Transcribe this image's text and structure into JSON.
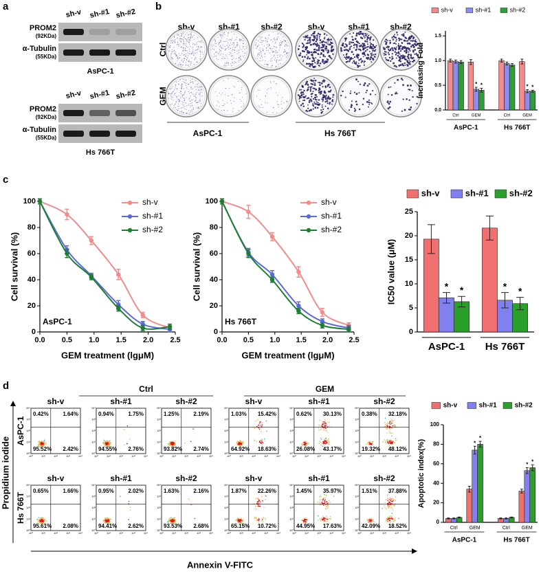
{
  "panel_labels": [
    "a",
    "b",
    "c",
    "d"
  ],
  "blots": [
    {
      "lanes": [
        "sh-v",
        "sh-#1",
        "sh-#2"
      ],
      "rows": [
        {
          "name": "PROM2",
          "size": "(92KDa)"
        },
        {
          "name": "α-Tubulin",
          "size": "(55KDa)"
        }
      ],
      "cell_line": "AsPC-1"
    },
    {
      "lanes": [
        "sh-v",
        "sh-#1",
        "sh-#2"
      ],
      "rows": [
        {
          "name": "PROM2",
          "size": "(92KDa)"
        },
        {
          "name": "α-Tubulin",
          "size": "(55KDa)"
        }
      ],
      "cell_line": "Hs 766T"
    }
  ],
  "colony": {
    "columns": [
      "sh-v",
      "sh-#1",
      "sh-#2",
      "sh-v",
      "sh-#1",
      "sh-#2"
    ],
    "rows": [
      "Ctrl",
      "GEM"
    ],
    "groups": [
      "AsPC-1",
      "Hs 766T"
    ]
  },
  "flow": {
    "groups": [
      "Ctrl",
      "GEM"
    ],
    "columns": [
      "sh-v",
      "sh-#1",
      "sh-#2",
      "sh-v",
      "sh-#1",
      "sh-#2"
    ],
    "rows": [
      {
        "label": "AsPC-1",
        "plots": [
          [
            "0.42%",
            "1.64%",
            "95.52%",
            "2.42%"
          ],
          [
            "0.94%",
            "1.75%",
            "94.55%",
            "2.76%"
          ],
          [
            "1.25%",
            "2.19%",
            "93.82%",
            "2.74%"
          ],
          [
            "1.03%",
            "15.42%",
            "64.92%",
            "18.63%"
          ],
          [
            "0.62%",
            "30.13%",
            "26.08%",
            "43.17%"
          ],
          [
            "0.38%",
            "32.18%",
            "19.32%",
            "48.12%"
          ]
        ]
      },
      {
        "label": "Hs 766T",
        "plots": [
          [
            "0.65%",
            "1.66%",
            "95.61%",
            "2.08%"
          ],
          [
            "0.95%",
            "2.02%",
            "94.41%",
            "2.62%"
          ],
          [
            "1.63%",
            "2.16%",
            "93.53%",
            "2.68%"
          ],
          [
            "1.87%",
            "22.26%",
            "65.15%",
            "10.72%"
          ],
          [
            "1.45%",
            "35.97%",
            "44.95%",
            "17.63%"
          ],
          [
            "1.51%",
            "37.88%",
            "42.09%",
            "18.52%"
          ]
        ]
      }
    ],
    "ticks": [
      "10⁰",
      "10¹",
      "10²",
      "10³",
      "10⁴"
    ],
    "y_label": "Propidium iodide",
    "x_label": "Annexin V-FITC"
  },
  "chart_data": [
    {
      "type": "bar",
      "y_label": "Increasing Fold",
      "categories": [
        "Ctrl",
        "GEM",
        "Ctrl",
        "GEM"
      ],
      "groups": [
        "AsPC-1",
        "Hs 766T"
      ],
      "ylim": [
        0,
        1.6
      ],
      "yticks": [
        {
          "value": 0,
          "label": "0.0"
        },
        0.5,
        {
          "value": 1,
          "label": "1.0"
        },
        1.5
      ],
      "series": [
        {
          "name": "sh-v",
          "color": "#f08c8c",
          "values": [
            1.0,
            0.97,
            1.0,
            0.98
          ],
          "errors": [
            0.03,
            0.05,
            0.03,
            0.05
          ]
        },
        {
          "name": "sh-#1",
          "color": "#8c8cec",
          "values": [
            0.98,
            0.42,
            0.94,
            0.38
          ],
          "errors": [
            0.03,
            0.04,
            0.03,
            0.03
          ],
          "significance": [
            null,
            "*",
            null,
            "*"
          ]
        },
        {
          "name": "sh-#2",
          "color": "#2e9e3a",
          "values": [
            0.97,
            0.4,
            0.91,
            0.38
          ],
          "errors": [
            0.03,
            0.04,
            0.03,
            0.02
          ],
          "significance": [
            null,
            "*",
            null,
            "*"
          ]
        }
      ]
    },
    {
      "type": "line",
      "y_label": "Cell survival (%)",
      "x_label": "GEM treatment (lgμM)",
      "annotation": "AsPC-1",
      "x": [
        0,
        0.5,
        0.95,
        1.45,
        1.9,
        2.4
      ],
      "xlim": [
        0,
        2.5
      ],
      "ylim": [
        0,
        100
      ],
      "xticks": [
        {
          "value": 0,
          "label": "0.0"
        },
        0.5,
        {
          "value": 1,
          "label": "1.0"
        },
        1.5,
        {
          "value": 2,
          "label": "2.0"
        },
        2.5
      ],
      "yticks": [
        0,
        20,
        40,
        60,
        80,
        100
      ],
      "series": [
        {
          "name": "sh-v",
          "color": "#f08c8c",
          "values": [
            100,
            90,
            70,
            44,
            13,
            3
          ],
          "errors": [
            2,
            4,
            3,
            4,
            2,
            2
          ]
        },
        {
          "name": "sh-#1",
          "color": "#5b6bd6",
          "values": [
            100,
            63,
            43,
            21,
            6,
            2
          ],
          "errors": [
            2,
            3,
            2,
            3,
            2,
            2
          ]
        },
        {
          "name": "sh-#2",
          "color": "#1e7d32",
          "values": [
            100,
            60,
            42,
            18,
            3,
            4
          ],
          "errors": [
            2,
            3,
            2,
            2,
            2,
            2
          ]
        }
      ]
    },
    {
      "type": "line",
      "y_label": "Cell survival (%)",
      "x_label": "GEM treatment (lgμM)",
      "annotation": "Hs 766T",
      "x": [
        0,
        0.5,
        0.95,
        1.45,
        1.9,
        2.4
      ],
      "xlim": [
        0,
        2.5
      ],
      "ylim": [
        0,
        100
      ],
      "xticks": [
        {
          "value": 0,
          "label": "0.0"
        },
        0.5,
        {
          "value": 1,
          "label": "1.0"
        },
        1.5,
        {
          "value": 2,
          "label": "2.0"
        },
        2.5
      ],
      "yticks": [
        0,
        20,
        40,
        60,
        80,
        100
      ],
      "series": [
        {
          "name": "sh-v",
          "color": "#f08c8c",
          "values": [
            100,
            92,
            73,
            46,
            15,
            5
          ],
          "errors": [
            2,
            5,
            3,
            4,
            3,
            2
          ]
        },
        {
          "name": "sh-#1",
          "color": "#5b6bd6",
          "values": [
            100,
            61,
            44,
            20,
            8,
            3
          ],
          "errors": [
            2,
            3,
            3,
            3,
            2,
            2
          ]
        },
        {
          "name": "sh-#2",
          "color": "#1e7d32",
          "values": [
            100,
            60,
            40,
            16,
            5,
            2
          ],
          "errors": [
            2,
            3,
            2,
            2,
            2,
            2
          ]
        }
      ]
    },
    {
      "type": "bar",
      "y_label": "IC50 value (μM)",
      "categories": [
        "AsPC-1",
        "Hs 766T"
      ],
      "ylim": [
        0,
        25
      ],
      "yticks": [
        0,
        5,
        10,
        15,
        20,
        25
      ],
      "series": [
        {
          "name": "sh-v",
          "color": "#f07070",
          "values": [
            19.3,
            21.6
          ],
          "errors": [
            3.0,
            2.5
          ]
        },
        {
          "name": "sh-#1",
          "color": "#8080ee",
          "values": [
            7.1,
            6.6
          ],
          "errors": [
            1.1,
            1.6
          ],
          "significance": [
            "*",
            "*"
          ]
        },
        {
          "name": "sh-#2",
          "color": "#2aa02a",
          "values": [
            6.3,
            5.9
          ],
          "errors": [
            1.1,
            1.3
          ],
          "significance": [
            "*",
            "*"
          ]
        }
      ]
    },
    {
      "type": "bar",
      "y_label": "Apoptotic index(%)",
      "categories": [
        "Ctrl",
        "GEM",
        "Ctrl",
        "GEM"
      ],
      "groups": [
        "AsPC-1",
        "Hs 766T"
      ],
      "ylim": [
        0,
        100
      ],
      "yticks": [
        0,
        20,
        40,
        60,
        80,
        100
      ],
      "series": [
        {
          "name": "sh-v",
          "color": "#f07070",
          "values": [
            4,
            34,
            4,
            32
          ],
          "errors": [
            0.5,
            3,
            0.5,
            2
          ]
        },
        {
          "name": "sh-#1",
          "color": "#8080ee",
          "values": [
            4,
            74,
            4,
            53
          ],
          "errors": [
            0.5,
            4,
            0.5,
            3
          ],
          "significance": [
            null,
            "*",
            null,
            "*"
          ]
        },
        {
          "name": "sh-#2",
          "color": "#2aa02a",
          "values": [
            5,
            80,
            5,
            56
          ],
          "errors": [
            0.5,
            3,
            0.5,
            3
          ],
          "significance": [
            null,
            "*",
            null,
            "*"
          ]
        }
      ]
    }
  ]
}
